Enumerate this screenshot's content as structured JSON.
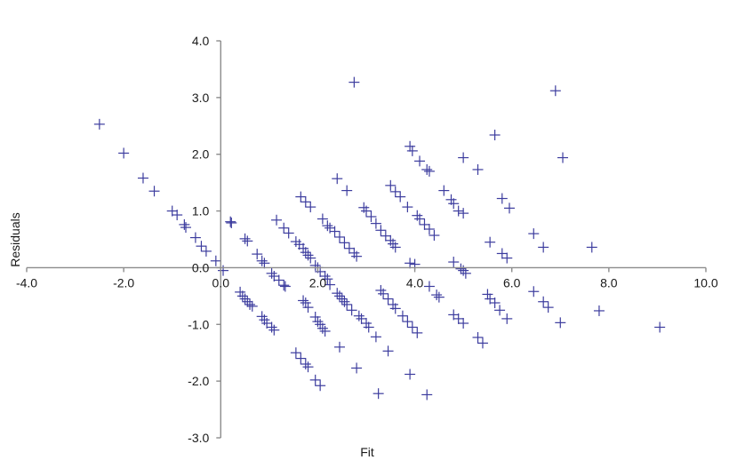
{
  "chart_data": {
    "type": "scatter",
    "title": "",
    "xlabel": "Fit",
    "ylabel": "Residuals",
    "xlim": [
      -4.0,
      10.0
    ],
    "ylim": [
      -3.0,
      4.0
    ],
    "xticks": [
      "-4.0",
      "-2.0",
      "0.0",
      "2.0",
      "4.0",
      "6.0",
      "8.0",
      "10.0"
    ],
    "yticks": [
      "-3.0",
      "-2.0",
      "-1.0",
      "0.0",
      "1.0",
      "2.0",
      "3.0",
      "4.0"
    ],
    "grid": false,
    "legend": "none",
    "marker": "plus",
    "marker_color": "#3c3c9e",
    "axis_color": "#8c8c8c",
    "series": [
      {
        "points": [
          [
            -2.5,
            2.53
          ],
          [
            -2.0,
            2.02
          ],
          [
            -1.6,
            1.58
          ],
          [
            -1.37,
            1.35
          ],
          [
            -1.0,
            1.0
          ],
          [
            -0.9,
            0.93
          ],
          [
            -0.75,
            0.76
          ],
          [
            -0.72,
            0.71
          ],
          [
            -0.52,
            0.53
          ],
          [
            -0.4,
            0.38
          ],
          [
            -0.3,
            0.29
          ],
          [
            -0.1,
            0.12
          ],
          [
            0.05,
            -0.05
          ],
          [
            0.2,
            0.81
          ],
          [
            0.22,
            0.79
          ],
          [
            0.5,
            0.51
          ],
          [
            0.55,
            0.47
          ],
          [
            0.75,
            0.24
          ],
          [
            0.85,
            0.12
          ],
          [
            0.9,
            0.08
          ],
          [
            1.05,
            -0.1
          ],
          [
            1.1,
            -0.15
          ],
          [
            1.2,
            -0.22
          ],
          [
            1.3,
            -0.31
          ],
          [
            1.33,
            -0.33
          ],
          [
            0.4,
            -0.43
          ],
          [
            0.45,
            -0.5
          ],
          [
            0.5,
            -0.55
          ],
          [
            0.55,
            -0.6
          ],
          [
            0.6,
            -0.65
          ],
          [
            0.65,
            -0.68
          ],
          [
            0.85,
            -0.86
          ],
          [
            0.9,
            -0.92
          ],
          [
            0.95,
            -0.98
          ],
          [
            1.05,
            -1.05
          ],
          [
            1.1,
            -1.1
          ],
          [
            1.15,
            0.84
          ],
          [
            1.3,
            0.7
          ],
          [
            1.4,
            0.61
          ],
          [
            1.55,
            0.46
          ],
          [
            1.62,
            0.41
          ],
          [
            1.7,
            0.34
          ],
          [
            1.75,
            0.27
          ],
          [
            1.8,
            0.22
          ],
          [
            1.85,
            0.17
          ],
          [
            1.95,
            0.04
          ],
          [
            2.0,
            0.0
          ],
          [
            2.05,
            -0.07
          ],
          [
            2.15,
            -0.15
          ],
          [
            2.2,
            -0.2
          ],
          [
            2.25,
            -0.3
          ],
          [
            1.65,
            1.25
          ],
          [
            1.75,
            1.16
          ],
          [
            1.85,
            1.07
          ],
          [
            1.7,
            -0.58
          ],
          [
            1.75,
            -0.62
          ],
          [
            1.8,
            -0.7
          ],
          [
            1.95,
            -0.87
          ],
          [
            2.0,
            -0.95
          ],
          [
            2.05,
            -1.0
          ],
          [
            2.1,
            -1.07
          ],
          [
            2.15,
            -1.12
          ],
          [
            1.55,
            -1.5
          ],
          [
            1.65,
            -1.6
          ],
          [
            1.75,
            -1.7
          ],
          [
            1.8,
            -1.75
          ],
          [
            1.95,
            -1.98
          ],
          [
            2.05,
            -2.08
          ],
          [
            2.1,
            0.86
          ],
          [
            2.2,
            0.74
          ],
          [
            2.25,
            0.7
          ],
          [
            2.35,
            0.64
          ],
          [
            2.45,
            0.54
          ],
          [
            2.55,
            0.44
          ],
          [
            2.65,
            0.34
          ],
          [
            2.75,
            0.26
          ],
          [
            2.8,
            0.2
          ],
          [
            2.4,
            1.57
          ],
          [
            2.6,
            1.36
          ],
          [
            2.45,
            -1.4
          ],
          [
            2.4,
            -0.45
          ],
          [
            2.45,
            -0.5
          ],
          [
            2.5,
            -0.55
          ],
          [
            2.55,
            -0.6
          ],
          [
            2.6,
            -0.65
          ],
          [
            2.7,
            -0.75
          ],
          [
            2.85,
            -0.85
          ],
          [
            2.9,
            -0.9
          ],
          [
            3.0,
            -0.98
          ],
          [
            3.05,
            -1.05
          ],
          [
            3.2,
            -1.22
          ],
          [
            2.95,
            1.06
          ],
          [
            3.0,
            1.0
          ],
          [
            3.1,
            0.9
          ],
          [
            3.2,
            0.78
          ],
          [
            3.3,
            0.66
          ],
          [
            3.4,
            0.56
          ],
          [
            3.5,
            0.48
          ],
          [
            3.55,
            0.42
          ],
          [
            3.6,
            0.36
          ],
          [
            3.5,
            1.45
          ],
          [
            3.6,
            1.34
          ],
          [
            3.7,
            1.25
          ],
          [
            3.85,
            1.07
          ],
          [
            3.3,
            -0.4
          ],
          [
            3.35,
            -0.46
          ],
          [
            3.45,
            -0.55
          ],
          [
            3.55,
            -0.65
          ],
          [
            3.6,
            -0.72
          ],
          [
            3.75,
            -0.85
          ],
          [
            3.85,
            -0.95
          ],
          [
            3.95,
            -1.05
          ],
          [
            4.05,
            -1.15
          ],
          [
            3.45,
            -1.47
          ],
          [
            2.75,
            3.27
          ],
          [
            2.8,
            -1.77
          ],
          [
            3.25,
            -2.22
          ],
          [
            3.9,
            -1.88
          ],
          [
            3.9,
            2.14
          ],
          [
            3.95,
            2.06
          ],
          [
            4.1,
            1.88
          ],
          [
            4.25,
            1.73
          ],
          [
            4.3,
            1.7
          ],
          [
            4.05,
            0.92
          ],
          [
            4.1,
            0.86
          ],
          [
            4.2,
            0.76
          ],
          [
            4.3,
            0.68
          ],
          [
            4.4,
            0.57
          ],
          [
            3.9,
            0.08
          ],
          [
            4.0,
            0.06
          ],
          [
            4.3,
            -0.33
          ],
          [
            4.45,
            -0.48
          ],
          [
            4.5,
            -0.52
          ],
          [
            4.25,
            -2.24
          ],
          [
            4.6,
            1.36
          ],
          [
            4.75,
            1.2
          ],
          [
            4.8,
            1.13
          ],
          [
            4.9,
            1.0
          ],
          [
            5.0,
            0.96
          ],
          [
            4.8,
            0.1
          ],
          [
            4.95,
            -0.02
          ],
          [
            5.0,
            -0.05
          ],
          [
            5.05,
            -0.1
          ],
          [
            4.8,
            -0.83
          ],
          [
            4.9,
            -0.9
          ],
          [
            5.0,
            -0.98
          ],
          [
            5.3,
            -1.23
          ],
          [
            5.4,
            -1.33
          ],
          [
            5.0,
            1.94
          ],
          [
            5.3,
            1.73
          ],
          [
            5.55,
            0.45
          ],
          [
            5.5,
            -0.47
          ],
          [
            5.55,
            -0.55
          ],
          [
            5.65,
            -0.62
          ],
          [
            5.75,
            -0.75
          ],
          [
            5.9,
            -0.9
          ],
          [
            5.65,
            2.34
          ],
          [
            5.8,
            1.22
          ],
          [
            5.95,
            1.05
          ],
          [
            5.8,
            0.25
          ],
          [
            5.9,
            0.17
          ],
          [
            6.45,
            0.6
          ],
          [
            6.65,
            0.36
          ],
          [
            6.45,
            -0.42
          ],
          [
            6.65,
            -0.6
          ],
          [
            6.75,
            -0.7
          ],
          [
            6.9,
            3.12
          ],
          [
            7.05,
            1.94
          ],
          [
            7.0,
            -0.97
          ],
          [
            7.65,
            0.36
          ],
          [
            7.8,
            -0.76
          ],
          [
            9.05,
            -1.05
          ]
        ]
      }
    ]
  }
}
